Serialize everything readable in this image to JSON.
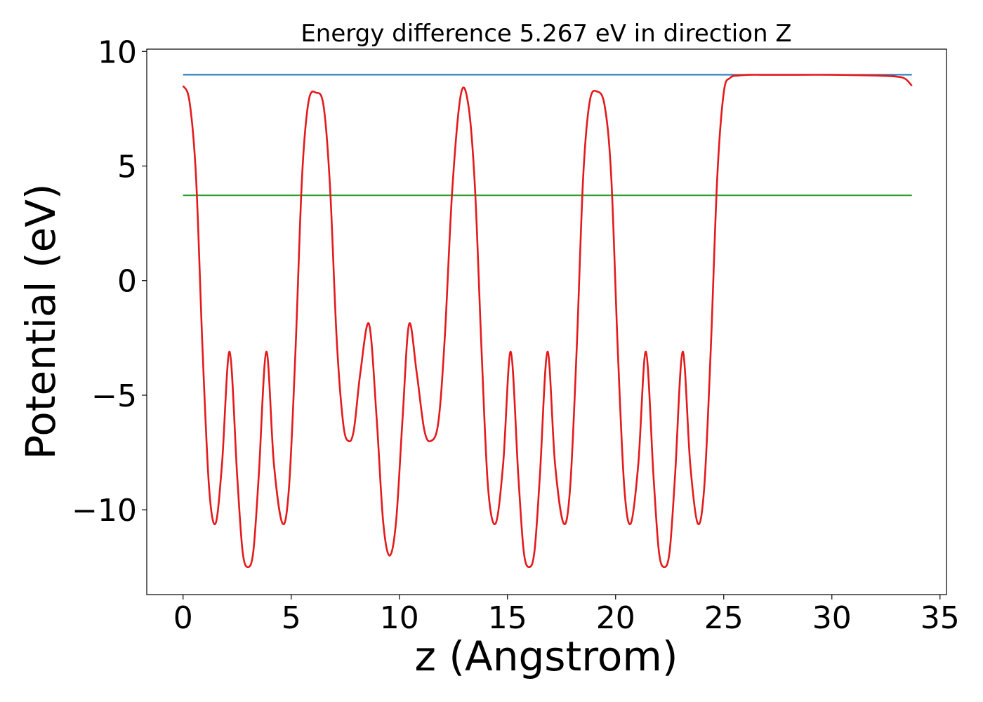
{
  "chart_data": {
    "type": "line",
    "title": "Energy difference 5.267 eV in direction Z",
    "xlabel": "z (Angstrom)",
    "ylabel": "Potential (eV)",
    "xlim": [
      -1.68,
      35.3
    ],
    "ylim": [
      -13.7,
      10.1
    ],
    "x_ticks": [
      0,
      5,
      10,
      15,
      20,
      25,
      30,
      35
    ],
    "y_ticks": [
      -10,
      -5,
      0,
      5,
      10
    ],
    "x_tick_labels": [
      "0",
      "5",
      "10",
      "15",
      "20",
      "25",
      "30",
      "35"
    ],
    "y_tick_labels": [
      "−10",
      "−5",
      "0",
      "5",
      "10"
    ],
    "grid": false,
    "series": [
      {
        "color": "#1f77b4",
        "x": [
          0,
          33.7
        ],
        "y": [
          8.98,
          8.98
        ]
      },
      {
        "color": "#2ca02c",
        "x": [
          0,
          33.7
        ],
        "y": [
          3.72,
          3.72
        ]
      },
      {
        "color": "#e31a1c",
        "x": [
          0,
          0.3,
          0.6,
          0.9,
          1.2,
          1.5,
          1.8,
          2.15,
          2.5,
          2.75,
          3.0,
          3.25,
          3.5,
          3.85,
          4.2,
          4.6,
          4.9,
          5.2,
          5.5,
          5.8,
          6.15,
          6.5,
          6.8,
          7.1,
          7.4,
          7.65,
          7.9,
          8.2,
          8.6,
          8.95,
          9.25,
          9.55,
          9.85,
          10.15,
          10.45,
          10.8,
          11.15,
          11.45,
          11.8,
          12.1,
          12.45,
          12.85,
          13.2,
          13.5,
          13.8,
          14.1,
          14.45,
          14.8,
          15.15,
          15.5,
          15.75,
          16.0,
          16.25,
          16.5,
          16.85,
          17.2,
          17.6,
          17.9,
          18.2,
          18.5,
          18.8,
          19.15,
          19.5,
          19.8,
          20.1,
          20.4,
          20.7,
          21.05,
          21.4,
          21.75,
          22.0,
          22.25,
          22.5,
          22.75,
          23.1,
          23.45,
          23.8,
          24.1,
          24.4,
          24.7,
          25.0,
          25.3,
          25.7,
          26.2,
          27.0,
          28.0,
          30.0,
          32.0,
          33.0,
          33.4,
          33.7
        ],
        "y": [
          8.5,
          7.8,
          4.5,
          -3.0,
          -9.0,
          -10.6,
          -8.0,
          -3.1,
          -8.5,
          -11.8,
          -12.5,
          -11.8,
          -8.5,
          -3.1,
          -8.0,
          -10.6,
          -9.0,
          -3.0,
          4.5,
          7.8,
          8.2,
          7.6,
          4.0,
          -2.5,
          -6.2,
          -7.0,
          -6.5,
          -4.0,
          -1.9,
          -6.0,
          -10.5,
          -12.0,
          -10.5,
          -6.0,
          -1.9,
          -4.0,
          -6.5,
          -7.0,
          -6.2,
          -2.5,
          4.0,
          8.15,
          7.6,
          4.0,
          -3.0,
          -9.0,
          -10.6,
          -8.0,
          -3.1,
          -8.5,
          -11.8,
          -12.5,
          -11.8,
          -8.5,
          -3.1,
          -8.0,
          -10.6,
          -9.0,
          -3.0,
          4.5,
          7.8,
          8.25,
          7.6,
          4.5,
          -3.0,
          -9.0,
          -10.6,
          -8.0,
          -3.1,
          -8.5,
          -11.8,
          -12.5,
          -11.8,
          -8.5,
          -3.1,
          -8.0,
          -10.6,
          -9.0,
          -3.0,
          4.5,
          8.2,
          8.85,
          8.95,
          8.98,
          8.98,
          8.98,
          8.98,
          8.95,
          8.9,
          8.8,
          8.5
        ]
      }
    ]
  }
}
